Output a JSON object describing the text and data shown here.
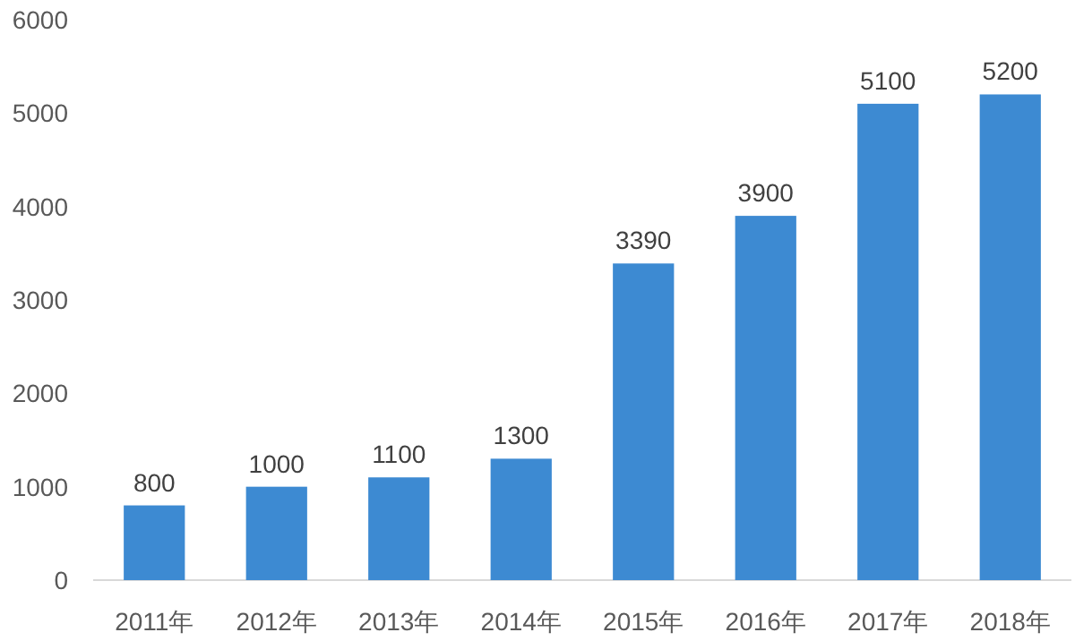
{
  "chart_data": {
    "type": "bar",
    "categories": [
      "2011年",
      "2012年",
      "2013年",
      "2014年",
      "2015年",
      "2016年",
      "2017年",
      "2018年"
    ],
    "values": [
      800,
      1000,
      1100,
      1300,
      3390,
      3900,
      5100,
      5200
    ],
    "color": "#3d8ad2",
    "ylim": [
      0,
      6000
    ],
    "yticks": [
      0,
      1000,
      2000,
      3000,
      4000,
      5000,
      6000
    ],
    "data_labels": true
  }
}
